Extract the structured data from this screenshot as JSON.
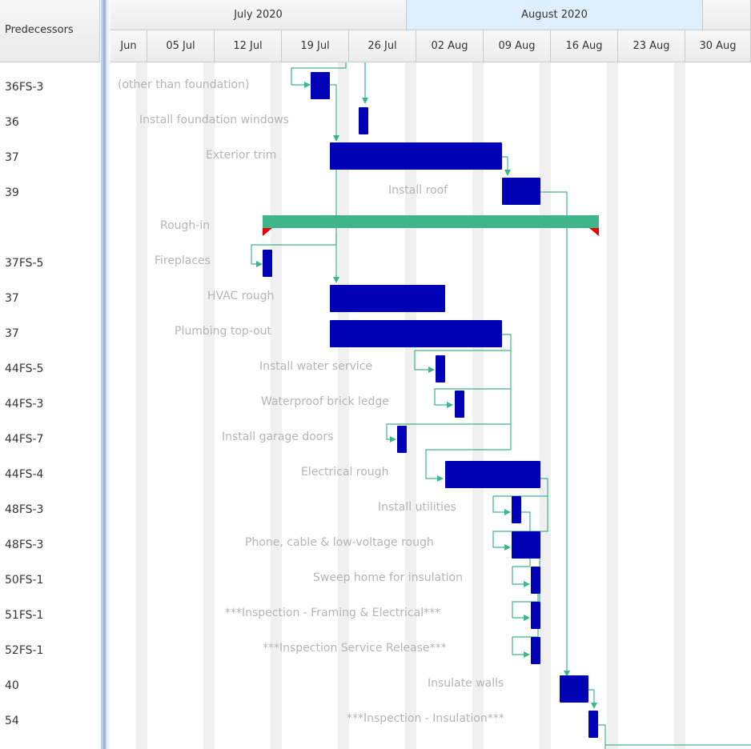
{
  "left_pane": {
    "header": "Predecessors",
    "rows": [
      "36FS-3",
      "36",
      "37",
      "39",
      "",
      "37FS-5",
      "37",
      "37",
      "44FS-5",
      "44FS-3",
      "44FS-7",
      "44FS-4",
      "48FS-3",
      "48FS-3",
      "50FS-1",
      "51FS-1",
      "52FS-1",
      "40",
      "54"
    ]
  },
  "timeline": {
    "months": [
      "July 2020",
      "August 2020"
    ],
    "weeks": [
      "Jun",
      "05 Jul",
      "12 Jul",
      "19 Jul",
      "26 Jul",
      "02 Aug",
      "09 Aug",
      "16 Aug",
      "23 Aug",
      "30 Aug"
    ]
  },
  "tasks": [
    {
      "label": "(other than foundation)"
    },
    {
      "label": "Install foundation windows"
    },
    {
      "label": "Exterior trim"
    },
    {
      "label": "Install roof"
    },
    {
      "label": "Rough-in"
    },
    {
      "label": "Fireplaces"
    },
    {
      "label": "HVAC rough"
    },
    {
      "label": "Plumbing top-out"
    },
    {
      "label": "Install water service"
    },
    {
      "label": "Waterproof brick ledge"
    },
    {
      "label": "Install garage doors"
    },
    {
      "label": "Electrical rough"
    },
    {
      "label": "Install utilities"
    },
    {
      "label": "Phone, cable & low-voltage rough"
    },
    {
      "label": "Sweep home for insulation"
    },
    {
      "label": "***Inspection - Framing & Electrical***"
    },
    {
      "label": "***Inspection Service Release***"
    },
    {
      "label": "Insulate walls"
    },
    {
      "label": "***Inspection - Insulation***"
    }
  ],
  "colors": {
    "task_bar": "#0000b4",
    "summary_bar": "#3fb58b",
    "link": "#3fb58b",
    "label": "#b4b4b4"
  }
}
